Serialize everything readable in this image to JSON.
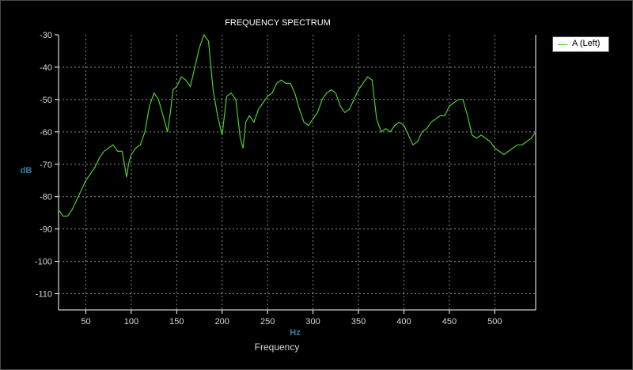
{
  "colors": {
    "background": "#000000",
    "grid": "#8a8a8a",
    "series": "#4ccf2a",
    "unit_text": "#2f7fa0"
  },
  "chart_data": {
    "type": "line",
    "title": "FREQUENCY SPECTRUM",
    "xlabel": "Frequency",
    "x_unit": "Hz",
    "ylabel": "dB",
    "xlim": [
      20,
      545
    ],
    "ylim": [
      -115,
      -30
    ],
    "x_ticks": [
      50,
      100,
      150,
      200,
      250,
      300,
      350,
      400,
      450,
      500
    ],
    "y_ticks": [
      -30,
      -40,
      -50,
      -60,
      -70,
      -80,
      -90,
      -100,
      -110
    ],
    "grid": true,
    "legend_position": "top-right",
    "series": [
      {
        "name": "A (Left)",
        "x": [
          20,
          25,
          30,
          35,
          40,
          45,
          50,
          55,
          60,
          65,
          70,
          75,
          80,
          85,
          90,
          95,
          97,
          100,
          105,
          110,
          115,
          120,
          125,
          130,
          135,
          140,
          143,
          146,
          150,
          155,
          160,
          165,
          170,
          175,
          180,
          185,
          190,
          195,
          200,
          205,
          210,
          215,
          220,
          223,
          226,
          230,
          235,
          240,
          245,
          250,
          255,
          260,
          265,
          270,
          275,
          280,
          285,
          290,
          295,
          300,
          305,
          310,
          315,
          320,
          325,
          330,
          335,
          340,
          345,
          350,
          355,
          360,
          365,
          370,
          375,
          380,
          385,
          390,
          395,
          400,
          405,
          410,
          415,
          420,
          425,
          430,
          435,
          440,
          445,
          450,
          455,
          460,
          465,
          470,
          475,
          480,
          485,
          490,
          495,
          500,
          505,
          510,
          515,
          520,
          525,
          530,
          535,
          540,
          545
        ],
        "values": [
          -84,
          -86,
          -86,
          -84,
          -81,
          -78,
          -75,
          -73,
          -71,
          -68,
          -66,
          -65,
          -64,
          -66,
          -66,
          -74,
          -70,
          -67,
          -65,
          -64,
          -60,
          -52,
          -48,
          -50,
          -55,
          -60,
          -54,
          -47,
          -46,
          -43,
          -44,
          -46,
          -40,
          -34,
          -30,
          -32,
          -47,
          -55,
          -61,
          -49,
          -48,
          -50,
          -62,
          -65,
          -57,
          -55,
          -57,
          -53,
          -51,
          -49,
          -48,
          -45,
          -44,
          -45,
          -45,
          -48,
          -53,
          -57,
          -58,
          -56,
          -54,
          -50,
          -48,
          -47,
          -48,
          -52,
          -54,
          -53,
          -50,
          -47,
          -45,
          -43,
          -44,
          -56,
          -60,
          -59,
          -60,
          -58,
          -57,
          -58,
          -61,
          -64,
          -63,
          -60,
          -59,
          -57,
          -56,
          -55,
          -55,
          -52,
          -51,
          -50,
          -50,
          -55,
          -61,
          -62,
          -61,
          -62,
          -63,
          -65,
          -66,
          -67,
          -66,
          -65,
          -64,
          -64,
          -63,
          -62,
          -60
        ]
      }
    ]
  }
}
